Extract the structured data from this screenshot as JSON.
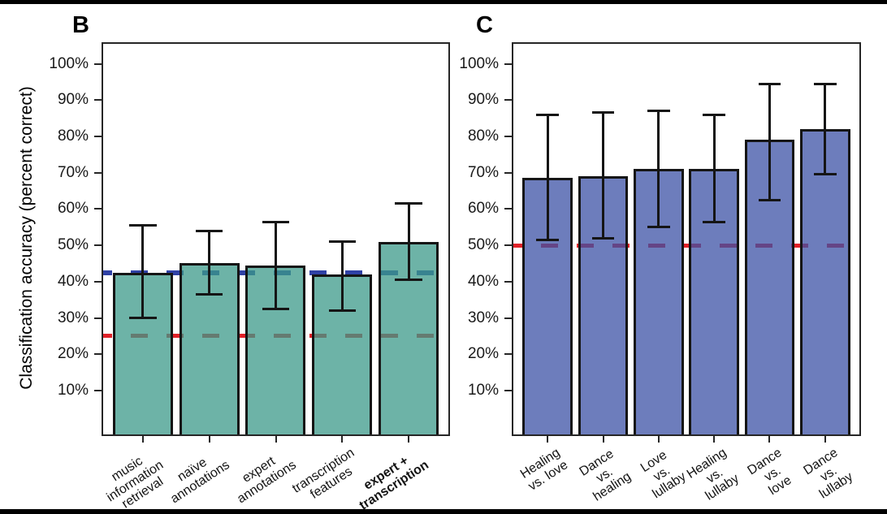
{
  "figure": {
    "y_axis_title": "Classification accuracy (percent correct)",
    "tick_suffix": "%"
  },
  "chart_data": [
    {
      "type": "bar",
      "panel_label": "B",
      "title": "",
      "xlabel": "",
      "ylabel": "Classification accuracy (percent correct)",
      "ylim": [
        -2.1,
        105.5
      ],
      "y_ticks": [
        100,
        90,
        80,
        70,
        60,
        50,
        40,
        30,
        20,
        10
      ],
      "grid": false,
      "legend": "none",
      "categories": [
        "music\ninformation\nretrieval",
        "naïve\nannotations",
        "expert\nannotations",
        "transcription\nfeatures",
        "expert +\ntranscription"
      ],
      "category_bold": [
        false,
        false,
        false,
        false,
        true
      ],
      "values": [
        42.5,
        45,
        44.5,
        42,
        51
      ],
      "error_low": [
        30,
        36.5,
        32.5,
        32,
        40.5
      ],
      "error_high": [
        55.5,
        54,
        56.5,
        51,
        61.5
      ],
      "bar_fill": "rgba(60,153,137,0.75)",
      "bar_border": "#151515",
      "reference_lines": [
        {
          "value": 42.5,
          "color": "#2F41A5",
          "style": "dashed",
          "thickness_px": 6
        },
        {
          "value": 25,
          "color": "#E02128",
          "style": "dashed",
          "thickness_px": 5
        }
      ]
    },
    {
      "type": "bar",
      "panel_label": "C",
      "title": "",
      "xlabel": "",
      "ylabel": "",
      "ylim": [
        -2.1,
        105.5
      ],
      "y_ticks": [
        100,
        90,
        80,
        70,
        60,
        50,
        40,
        30,
        20,
        10
      ],
      "grid": false,
      "legend": "none",
      "categories": [
        "Healing vs. love",
        "Dance vs. healing",
        "Love vs. lullaby",
        "Healing vs. lullaby",
        "Dance vs. love",
        "Dance vs. lullaby"
      ],
      "category_bold": [
        false,
        false,
        false,
        false,
        false,
        false
      ],
      "values": [
        68.5,
        69,
        71,
        71,
        79,
        82
      ],
      "error_low": [
        51.5,
        52,
        55,
        56.5,
        62.5,
        69.5
      ],
      "error_high": [
        86,
        86.5,
        87,
        86,
        94.5,
        94.5
      ],
      "bar_fill": "rgba(60,81,165,0.75)",
      "bar_border": "#151515",
      "reference_lines": [
        {
          "value": 50,
          "color": "#E02128",
          "style": "dashed",
          "thickness_px": 5
        }
      ]
    }
  ]
}
